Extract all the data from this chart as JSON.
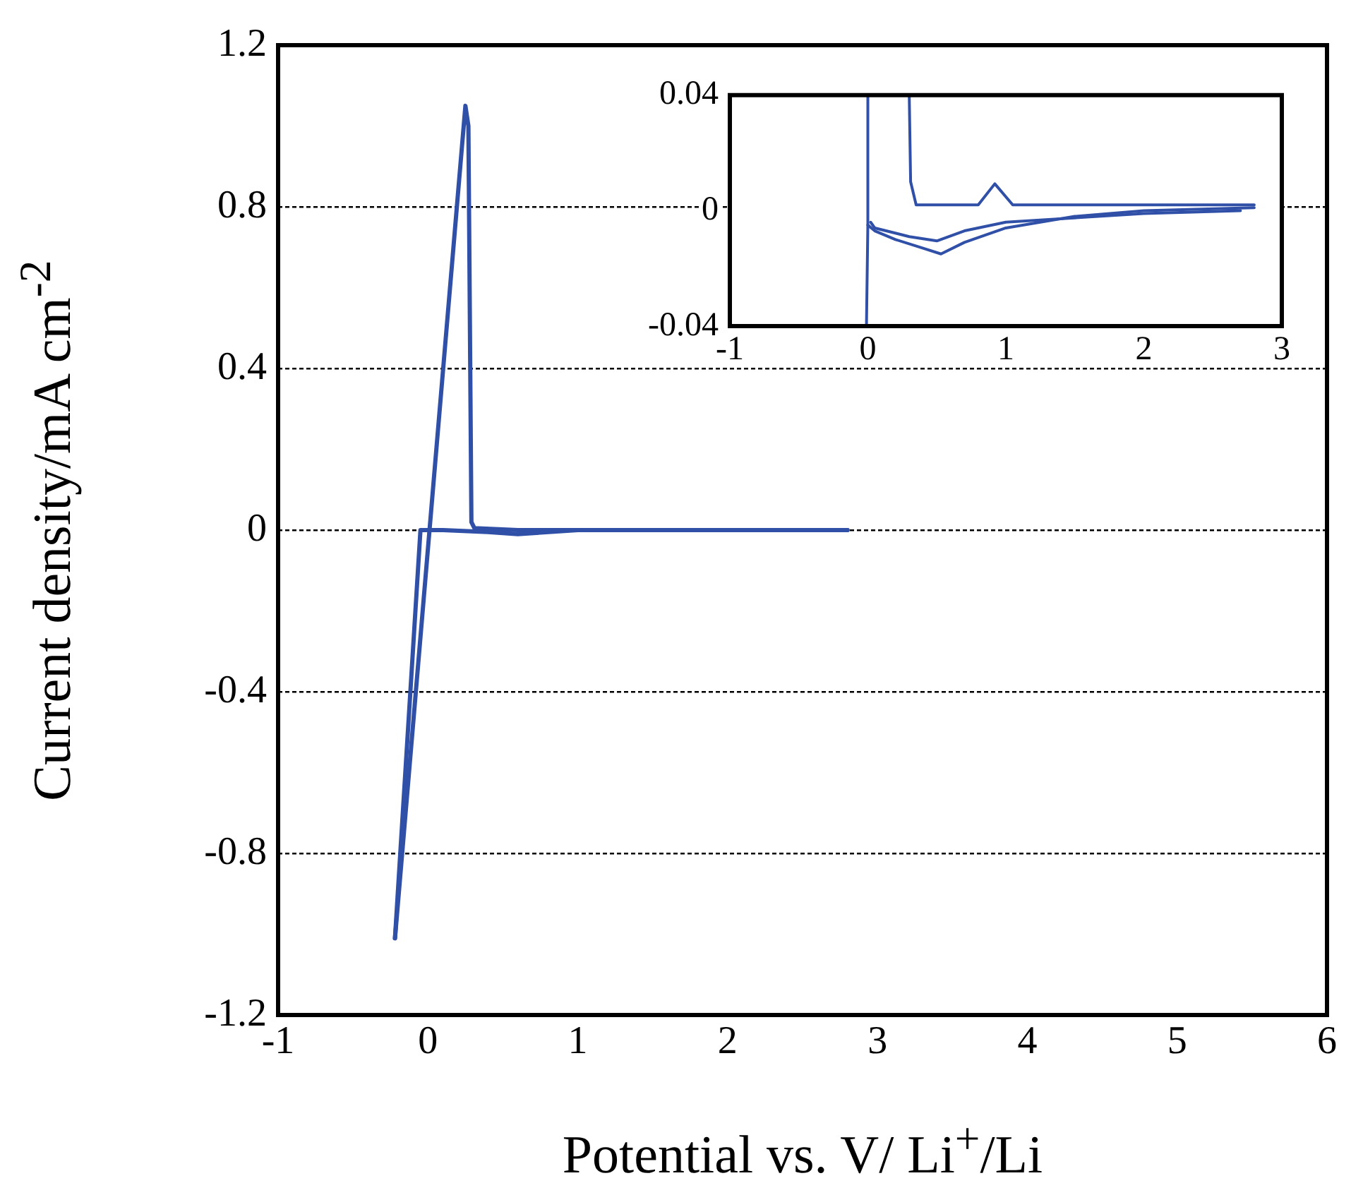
{
  "chart_data": [
    {
      "type": "line",
      "xlabel": "Potential vs. V/ Li$^{+}$/Li",
      "ylabel": "Current density/mA cm$^{-2}$",
      "xlim": [
        -1,
        6
      ],
      "xticks": [
        -1,
        0,
        1,
        2,
        3,
        4,
        5,
        6
      ],
      "ylim": [
        -1.2,
        1.2
      ],
      "yticks": [
        -1.2,
        -0.8,
        -0.4,
        0,
        0.4,
        0.8,
        1.2
      ],
      "grid": "y",
      "marker": "none",
      "line_style": "solid",
      "series": [
        {
          "color": "#3050a8",
          "x": [
            2.8,
            1.5,
            1.0,
            0.6,
            0.4,
            0.1,
            0.0,
            -0.05,
            -0.22
          ],
          "values": [
            0,
            0,
            0,
            -0.01,
            -0.005,
            0,
            0,
            0,
            -1.01
          ]
        },
        {
          "color": "#3050a8",
          "x": [
            -0.22,
            0.25,
            0.27,
            0.29,
            0.31,
            0.6,
            1.0,
            2.8
          ],
          "values": [
            -1.01,
            1.05,
            1.0,
            0.02,
            0.005,
            0,
            0,
            0
          ]
        }
      ]
    },
    {
      "type": "line",
      "xlim": [
        -1,
        3
      ],
      "xticks": [
        -1,
        0,
        1,
        2,
        3
      ],
      "ylim": [
        -0.04,
        0.04
      ],
      "yticks": [
        -0.04,
        0,
        0.04
      ],
      "marker": "none",
      "line_style": "solid",
      "series": [
        {
          "color": "#3050a8",
          "x": [
            2.8,
            2.0,
            1.5,
            1.0,
            0.7,
            0.53,
            0.4,
            0.2,
            0.05,
            0.0
          ],
          "values": [
            0.001,
            0.0,
            -0.002,
            -0.006,
            -0.011,
            -0.015,
            -0.013,
            -0.01,
            -0.007,
            -0.005
          ]
        },
        {
          "color": "#3050a8",
          "x": [
            2.7,
            2.0,
            1.0,
            0.7,
            0.5,
            0.3,
            0.05,
            0.02
          ],
          "values": [
            0.0,
            -0.001,
            -0.004,
            -0.007,
            -0.0105,
            -0.009,
            -0.006,
            -0.004
          ]
        },
        {
          "color": "#3050a8",
          "x": [
            -0.01,
            0.0,
            0.0
          ],
          "values": [
            -0.04,
            -0.005,
            0.04
          ]
        },
        {
          "color": "#3050a8",
          "x": [
            0.3,
            0.31,
            0.35,
            0.8,
            0.92,
            1.05,
            1.5,
            2.0,
            2.8
          ],
          "values": [
            0.04,
            0.01,
            0.002,
            0.002,
            0.0093,
            0.002,
            0.002,
            0.002,
            0.002
          ]
        }
      ]
    }
  ]
}
